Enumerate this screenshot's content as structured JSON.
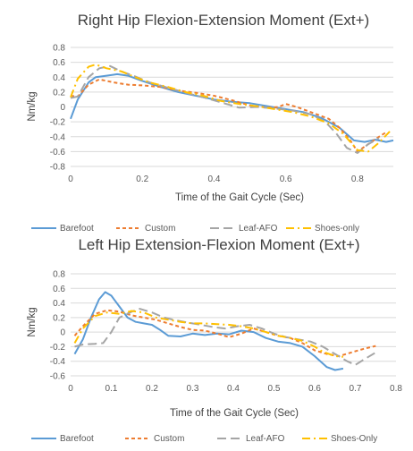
{
  "chart_data": [
    {
      "type": "line",
      "title": "Right Hip Flexion-Extension Moment (Ext+)",
      "xlabel": "Time of the Gait Cycle (Sec)",
      "ylabel": "Nm/kg",
      "xlim": [
        0,
        0.9
      ],
      "ylim": [
        -0.8,
        0.8
      ],
      "x_ticks": [
        "0",
        "0.2",
        "0.4",
        "0.6",
        "0.8"
      ],
      "y_ticks": [
        "0.8",
        "0.6",
        "0.4",
        "0.2",
        "0",
        "-0.2",
        "-0.4",
        "-0.6",
        "-0.8"
      ],
      "grid": true,
      "legend": "bottom",
      "series": [
        {
          "name": "Barefoot",
          "color": "#5b9bd5",
          "dash": "solid",
          "points": [
            [
              0.0,
              -0.16
            ],
            [
              0.02,
              0.1
            ],
            [
              0.05,
              0.33
            ],
            [
              0.07,
              0.4
            ],
            [
              0.1,
              0.42
            ],
            [
              0.13,
              0.44
            ],
            [
              0.16,
              0.42
            ],
            [
              0.2,
              0.35
            ],
            [
              0.25,
              0.27
            ],
            [
              0.3,
              0.2
            ],
            [
              0.35,
              0.15
            ],
            [
              0.4,
              0.1
            ],
            [
              0.45,
              0.07
            ],
            [
              0.5,
              0.05
            ],
            [
              0.55,
              0.01
            ],
            [
              0.6,
              -0.03
            ],
            [
              0.65,
              -0.07
            ],
            [
              0.7,
              -0.15
            ],
            [
              0.75,
              -0.28
            ],
            [
              0.79,
              -0.45
            ],
            [
              0.82,
              -0.47
            ],
            [
              0.85,
              -0.44
            ],
            [
              0.88,
              -0.47
            ],
            [
              0.9,
              -0.45
            ]
          ]
        },
        {
          "name": "Custom",
          "color": "#ed7d31",
          "dash": "short-dash",
          "points": [
            [
              0.0,
              0.15
            ],
            [
              0.02,
              0.14
            ],
            [
              0.05,
              0.3
            ],
            [
              0.08,
              0.37
            ],
            [
              0.12,
              0.33
            ],
            [
              0.16,
              0.3
            ],
            [
              0.2,
              0.29
            ],
            [
              0.25,
              0.27
            ],
            [
              0.3,
              0.22
            ],
            [
              0.35,
              0.19
            ],
            [
              0.4,
              0.15
            ],
            [
              0.45,
              0.09
            ],
            [
              0.5,
              0.02
            ],
            [
              0.55,
              -0.01
            ],
            [
              0.58,
              0.0
            ],
            [
              0.6,
              0.04
            ],
            [
              0.63,
              0.0
            ],
            [
              0.67,
              -0.07
            ],
            [
              0.72,
              -0.16
            ],
            [
              0.75,
              -0.28
            ],
            [
              0.78,
              -0.45
            ],
            [
              0.8,
              -0.6
            ],
            [
              0.83,
              -0.5
            ],
            [
              0.86,
              -0.4
            ],
            [
              0.88,
              -0.34
            ]
          ]
        },
        {
          "name": "Leaf-AFO",
          "color": "#a5a5a5",
          "dash": "long-dash",
          "points": [
            [
              0.0,
              0.12
            ],
            [
              0.02,
              0.14
            ],
            [
              0.05,
              0.4
            ],
            [
              0.08,
              0.52
            ],
            [
              0.11,
              0.55
            ],
            [
              0.14,
              0.48
            ],
            [
              0.18,
              0.41
            ],
            [
              0.22,
              0.33
            ],
            [
              0.27,
              0.26
            ],
            [
              0.32,
              0.19
            ],
            [
              0.37,
              0.13
            ],
            [
              0.42,
              0.06
            ],
            [
              0.47,
              -0.01
            ],
            [
              0.52,
              0.0
            ],
            [
              0.57,
              -0.02
            ],
            [
              0.62,
              -0.05
            ],
            [
              0.67,
              -0.1
            ],
            [
              0.71,
              -0.2
            ],
            [
              0.74,
              -0.35
            ],
            [
              0.77,
              -0.55
            ],
            [
              0.8,
              -0.62
            ],
            [
              0.83,
              -0.5
            ],
            [
              0.86,
              -0.42
            ]
          ]
        },
        {
          "name": "Shoes-only",
          "color": "#ffc000",
          "dash": "dash-dot",
          "points": [
            [
              0.0,
              0.13
            ],
            [
              0.02,
              0.38
            ],
            [
              0.05,
              0.54
            ],
            [
              0.07,
              0.57
            ],
            [
              0.1,
              0.52
            ],
            [
              0.14,
              0.48
            ],
            [
              0.18,
              0.4
            ],
            [
              0.22,
              0.33
            ],
            [
              0.27,
              0.27
            ],
            [
              0.32,
              0.2
            ],
            [
              0.37,
              0.15
            ],
            [
              0.42,
              0.08
            ],
            [
              0.47,
              0.04
            ],
            [
              0.52,
              0.01
            ],
            [
              0.57,
              -0.03
            ],
            [
              0.62,
              -0.07
            ],
            [
              0.67,
              -0.13
            ],
            [
              0.72,
              -0.22
            ],
            [
              0.76,
              -0.36
            ],
            [
              0.8,
              -0.58
            ],
            [
              0.83,
              -0.6
            ],
            [
              0.86,
              -0.48
            ],
            [
              0.89,
              -0.33
            ]
          ]
        }
      ]
    },
    {
      "type": "line",
      "title": "Left Hip Extension-Flexion Moment (Ext+)",
      "xlabel": "Time of the Gait Cycle (Sec)",
      "ylabel": "Nm/kg",
      "xlim": [
        0,
        0.8
      ],
      "ylim": [
        -0.6,
        0.8
      ],
      "x_ticks": [
        "0",
        "0.1",
        "0.2",
        "0.3",
        "0.4",
        "0.5",
        "0.6",
        "0.7",
        "0.8"
      ],
      "y_ticks": [
        "0.8",
        "0.6",
        "0.4",
        "0.2",
        "0",
        "-0.2",
        "-0.4",
        "-0.6"
      ],
      "grid": true,
      "legend": "bottom",
      "series": [
        {
          "name": "Barefoot",
          "color": "#5b9bd5",
          "dash": "solid",
          "points": [
            [
              0.01,
              -0.3
            ],
            [
              0.03,
              -0.1
            ],
            [
              0.05,
              0.2
            ],
            [
              0.07,
              0.45
            ],
            [
              0.085,
              0.55
            ],
            [
              0.1,
              0.5
            ],
            [
              0.12,
              0.35
            ],
            [
              0.14,
              0.2
            ],
            [
              0.16,
              0.14
            ],
            [
              0.18,
              0.12
            ],
            [
              0.2,
              0.1
            ],
            [
              0.22,
              0.03
            ],
            [
              0.24,
              -0.05
            ],
            [
              0.27,
              -0.06
            ],
            [
              0.3,
              -0.02
            ],
            [
              0.33,
              -0.04
            ],
            [
              0.36,
              -0.02
            ],
            [
              0.39,
              -0.03
            ],
            [
              0.42,
              0.02
            ],
            [
              0.45,
              0.0
            ],
            [
              0.48,
              -0.08
            ],
            [
              0.51,
              -0.13
            ],
            [
              0.54,
              -0.15
            ],
            [
              0.57,
              -0.2
            ],
            [
              0.6,
              -0.33
            ],
            [
              0.63,
              -0.48
            ],
            [
              0.65,
              -0.52
            ],
            [
              0.67,
              -0.5
            ]
          ]
        },
        {
          "name": "Custom",
          "color": "#ed7d31",
          "dash": "short-dash",
          "points": [
            [
              0.01,
              -0.05
            ],
            [
              0.03,
              0.08
            ],
            [
              0.06,
              0.25
            ],
            [
              0.09,
              0.3
            ],
            [
              0.12,
              0.28
            ],
            [
              0.15,
              0.23
            ],
            [
              0.18,
              0.2
            ],
            [
              0.21,
              0.17
            ],
            [
              0.24,
              0.12
            ],
            [
              0.27,
              0.07
            ],
            [
              0.3,
              0.03
            ],
            [
              0.33,
              0.02
            ],
            [
              0.36,
              -0.02
            ],
            [
              0.39,
              -0.07
            ],
            [
              0.42,
              -0.02
            ],
            [
              0.45,
              0.05
            ],
            [
              0.48,
              0.0
            ],
            [
              0.51,
              -0.05
            ],
            [
              0.54,
              -0.08
            ],
            [
              0.57,
              -0.15
            ],
            [
              0.6,
              -0.25
            ],
            [
              0.63,
              -0.3
            ],
            [
              0.66,
              -0.33
            ],
            [
              0.69,
              -0.28
            ],
            [
              0.72,
              -0.23
            ],
            [
              0.75,
              -0.19
            ]
          ]
        },
        {
          "name": "Leaf-AFO",
          "color": "#a5a5a5",
          "dash": "long-dash",
          "points": [
            [
              0.01,
              -0.2
            ],
            [
              0.03,
              -0.17
            ],
            [
              0.06,
              -0.16
            ],
            [
              0.08,
              -0.15
            ],
            [
              0.1,
              0.0
            ],
            [
              0.12,
              0.2
            ],
            [
              0.15,
              0.28
            ],
            [
              0.17,
              0.32
            ],
            [
              0.2,
              0.27
            ],
            [
              0.23,
              0.2
            ],
            [
              0.26,
              0.16
            ],
            [
              0.29,
              0.13
            ],
            [
              0.32,
              0.1
            ],
            [
              0.35,
              0.07
            ],
            [
              0.38,
              0.05
            ],
            [
              0.41,
              0.08
            ],
            [
              0.44,
              0.1
            ],
            [
              0.47,
              0.05
            ],
            [
              0.5,
              -0.02
            ],
            [
              0.53,
              -0.07
            ],
            [
              0.56,
              -0.1
            ],
            [
              0.59,
              -0.13
            ],
            [
              0.62,
              -0.2
            ],
            [
              0.65,
              -0.3
            ],
            [
              0.68,
              -0.4
            ],
            [
              0.7,
              -0.45
            ],
            [
              0.72,
              -0.38
            ],
            [
              0.75,
              -0.28
            ]
          ]
        },
        {
          "name": "Shoes-Only",
          "color": "#ffc000",
          "dash": "dash-dot",
          "points": [
            [
              0.01,
              -0.15
            ],
            [
              0.03,
              0.05
            ],
            [
              0.06,
              0.22
            ],
            [
              0.09,
              0.27
            ],
            [
              0.12,
              0.25
            ],
            [
              0.15,
              0.29
            ],
            [
              0.18,
              0.27
            ],
            [
              0.21,
              0.2
            ],
            [
              0.24,
              0.17
            ],
            [
              0.27,
              0.14
            ],
            [
              0.3,
              0.12
            ],
            [
              0.33,
              0.12
            ],
            [
              0.36,
              0.11
            ],
            [
              0.39,
              0.1
            ],
            [
              0.42,
              0.08
            ],
            [
              0.45,
              0.05
            ],
            [
              0.48,
              0.0
            ],
            [
              0.51,
              -0.05
            ],
            [
              0.54,
              -0.08
            ],
            [
              0.57,
              -0.12
            ],
            [
              0.6,
              -0.2
            ],
            [
              0.62,
              -0.27
            ],
            [
              0.65,
              -0.33
            ],
            [
              0.67,
              -0.34
            ]
          ]
        }
      ]
    }
  ]
}
